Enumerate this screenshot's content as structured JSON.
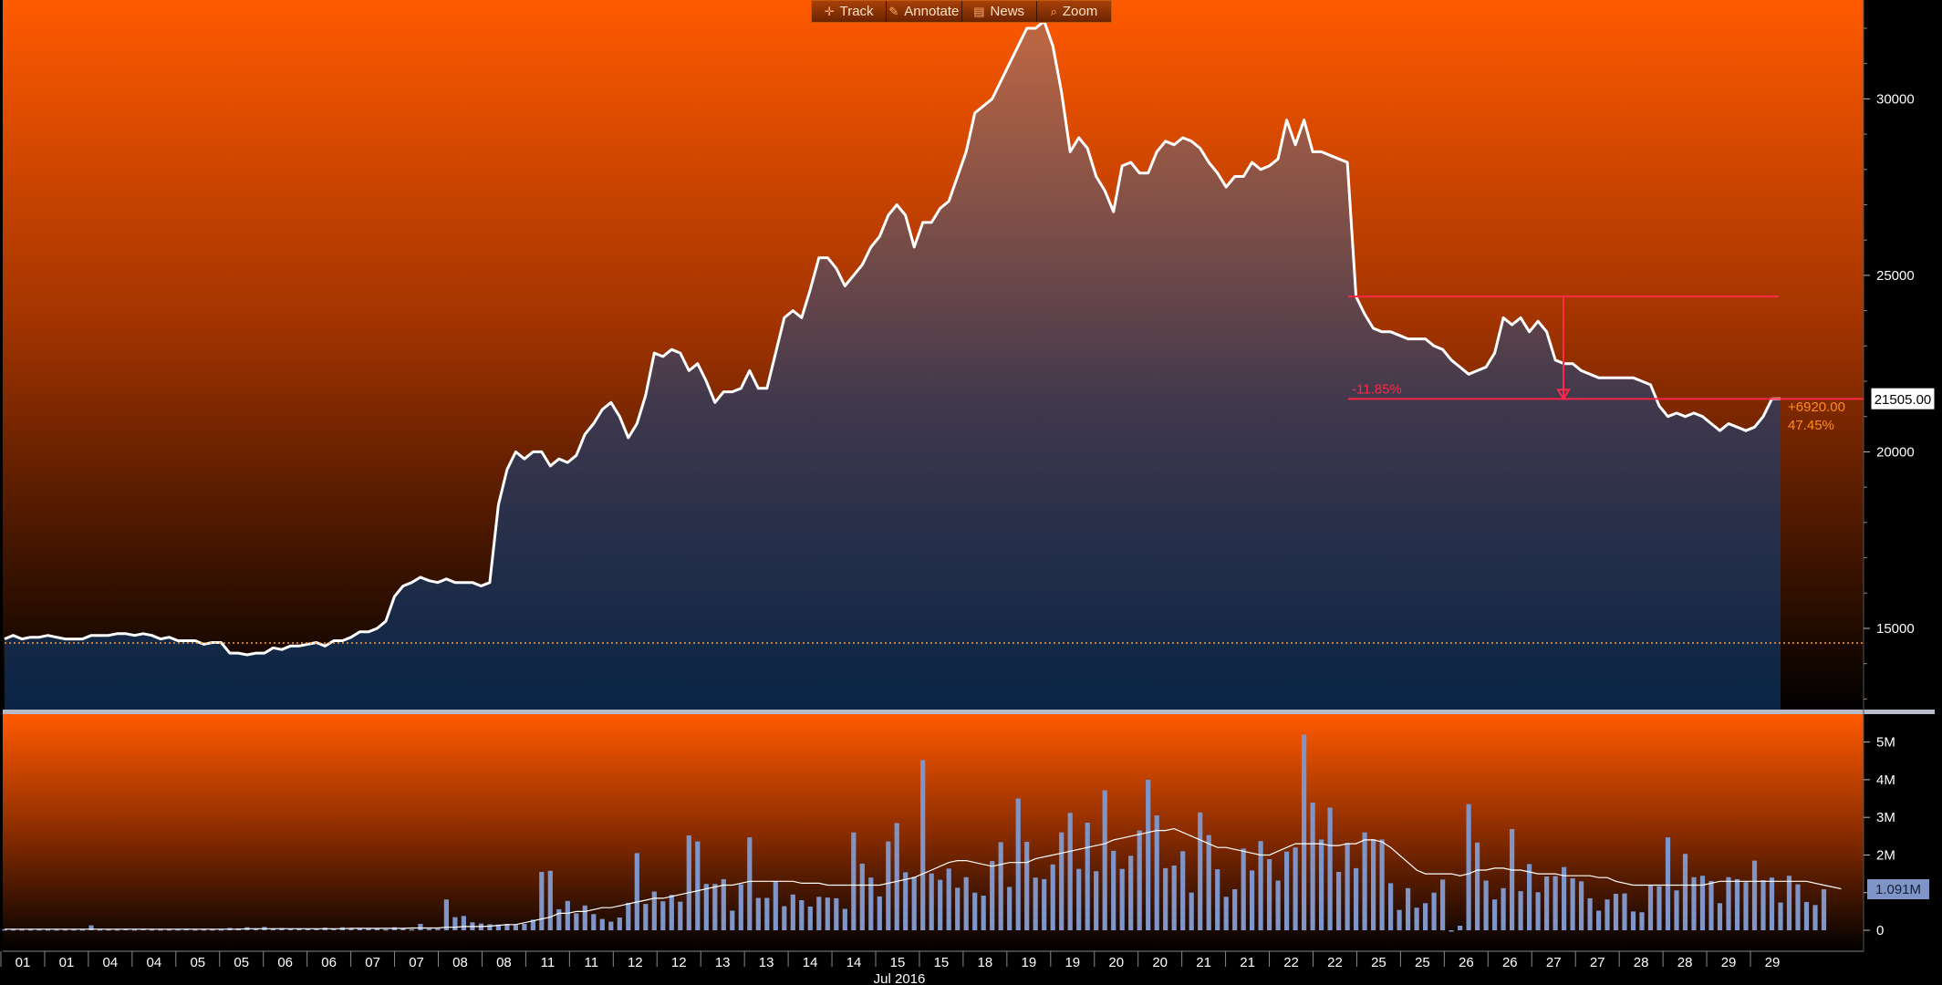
{
  "toolbar": {
    "buttons": [
      {
        "label": "Track",
        "icon": "crosshair-icon"
      },
      {
        "label": "Annotate",
        "icon": "pencil-icon"
      },
      {
        "label": "News",
        "icon": "news-icon"
      },
      {
        "label": "Zoom",
        "icon": "magnifier-icon"
      }
    ]
  },
  "colors": {
    "bg_top": "#ff5a00",
    "bg_bottom": "#000000",
    "price_line": "#ffffff",
    "volume_bar": "#7f95c8",
    "annotation": "#ff2848",
    "change_text": "#ff8c1a",
    "baseline": "#ff9a3c"
  },
  "chart_data": [
    {
      "type": "area",
      "title": "",
      "xlabel": "Jul 2016",
      "ylabel": "",
      "ylim": [
        12700,
        32800
      ],
      "yticks": [
        15000,
        20000,
        25000,
        30000
      ],
      "ytick_labels": [
        "15000",
        "20000",
        "25000",
        "30000"
      ],
      "x_tick_labels": [
        "01",
        "01",
        "04",
        "04",
        "05",
        "05",
        "06",
        "06",
        "07",
        "07",
        "08",
        "08",
        "11",
        "11",
        "12",
        "12",
        "13",
        "13",
        "14",
        "14",
        "15",
        "15",
        "18",
        "19",
        "19",
        "20",
        "20",
        "21",
        "21",
        "22",
        "22",
        "25",
        "25",
        "26",
        "26",
        "27",
        "27",
        "28",
        "28",
        "29",
        "29"
      ],
      "x_month_label": "Jul 2016",
      "grid": false,
      "values": [
        14700,
        14800,
        14700,
        14750,
        14750,
        14800,
        14750,
        14700,
        14700,
        14700,
        14800,
        14800,
        14800,
        14850,
        14850,
        14800,
        14850,
        14800,
        14700,
        14750,
        14650,
        14650,
        14650,
        14550,
        14600,
        14600,
        14300,
        14300,
        14250,
        14300,
        14300,
        14450,
        14400,
        14500,
        14500,
        14550,
        14600,
        14500,
        14650,
        14650,
        14750,
        14900,
        14900,
        15000,
        15200,
        15900,
        16200,
        16300,
        16450,
        16350,
        16300,
        16400,
        16300,
        16300,
        16300,
        16200,
        16300,
        18500,
        19500,
        20000,
        19800,
        20000,
        20000,
        19600,
        19800,
        19700,
        19900,
        20500,
        20800,
        21200,
        21400,
        21000,
        20400,
        20800,
        21600,
        22800,
        22700,
        22900,
        22800,
        22300,
        22500,
        22000,
        21400,
        21700,
        21700,
        21800,
        22300,
        21800,
        21800,
        22800,
        23800,
        24000,
        23800,
        24600,
        25500,
        25500,
        25200,
        24700,
        25000,
        25300,
        25800,
        26100,
        26700,
        27000,
        26700,
        25800,
        26500,
        26500,
        26900,
        27100,
        27800,
        28500,
        29600,
        29800,
        30000,
        30500,
        31000,
        31500,
        32000,
        32000,
        32200,
        31500,
        30200,
        28500,
        28900,
        28600,
        27800,
        27400,
        26800,
        28100,
        28200,
        27900,
        27900,
        28500,
        28800,
        28700,
        28900,
        28800,
        28600,
        28200,
        27900,
        27500,
        27800,
        27800,
        28200,
        28000,
        28100,
        28300,
        29400,
        28700,
        29400,
        28500,
        28500,
        28400,
        28300,
        28200,
        24400,
        23900,
        23500,
        23400,
        23400,
        23300,
        23200,
        23200,
        23200,
        23000,
        22900,
        22600,
        22400,
        22200,
        22300,
        22400,
        22800,
        23800,
        23600,
        23800,
        23400,
        23700,
        23400,
        22600,
        22500,
        22500,
        22300,
        22200,
        22100,
        22100,
        22100,
        22100,
        22100,
        22000,
        21900,
        21300,
        21000,
        21100,
        21000,
        21100,
        21000,
        20800,
        20600,
        20800,
        20700,
        20600,
        20700,
        21000,
        21500,
        21505
      ],
      "last_value": 21505,
      "last_value_label": "21505.00",
      "baseline_value": 14585,
      "change_label": "+6920.00",
      "change_pct_label": "47.45%",
      "annotation": {
        "type": "drawdown",
        "from_value": 24400,
        "to_value": 21500,
        "label": "-11.85%"
      }
    },
    {
      "type": "bar",
      "title": "",
      "ylabel": "",
      "ylim": [
        0,
        5500000
      ],
      "yticks": [
        0,
        1000000,
        2000000,
        3000000,
        4000000,
        5000000
      ],
      "ytick_labels": [
        "0",
        "1M",
        "2M",
        "3M",
        "4M",
        "5M"
      ],
      "last_value_label": "1.091M",
      "series": [
        {
          "values": [
            30000,
            30000,
            30000,
            30000,
            30000,
            30000,
            30000,
            30000,
            30000,
            30000,
            130000,
            30000,
            30000,
            30000,
            40000,
            30000,
            40000,
            30000,
            30000,
            30000,
            30000,
            40000,
            30000,
            30000,
            30000,
            30000,
            60000,
            50000,
            80000,
            40000,
            90000,
            50000,
            60000,
            40000,
            50000,
            40000,
            40000,
            70000,
            40000,
            80000,
            60000,
            40000,
            60000,
            40000,
            30000,
            80000,
            40000,
            30000,
            170000,
            40000,
            40000,
            820000,
            350000,
            380000,
            210000,
            180000,
            160000,
            150000,
            170000,
            140000,
            170000,
            280000,
            1550000,
            1580000,
            560000,
            780000,
            450000,
            660000,
            430000,
            300000,
            230000,
            340000,
            730000,
            2050000,
            700000,
            1030000,
            770000,
            940000,
            760000,
            2520000,
            2360000,
            1230000,
            1230000,
            1360000,
            520000,
            1220000,
            2470000,
            860000,
            860000,
            1290000,
            640000,
            950000,
            800000,
            630000,
            890000,
            870000,
            850000,
            570000,
            2600000,
            1770000,
            1400000,
            900000,
            2360000,
            2850000,
            1540000,
            1420000,
            4520000,
            1510000,
            1340000,
            1640000,
            1130000,
            1410000,
            1000000,
            920000,
            1840000,
            2340000,
            1150000,
            3500000,
            2350000,
            1400000,
            1360000,
            1750000,
            2600000,
            3120000,
            1630000,
            2860000,
            1570000,
            3720000,
            2110000,
            1630000,
            1980000,
            2650000,
            4000000,
            3050000,
            1650000,
            1720000,
            2100000,
            1000000,
            3130000,
            2530000,
            1620000,
            890000,
            1090000,
            2170000,
            1590000,
            2370000,
            1890000,
            1320000,
            2090000,
            2200000,
            5200000,
            3390000,
            2410000,
            3260000,
            1550000,
            2320000,
            1650000,
            2600000,
            2420000,
            2410000,
            1250000,
            540000,
            1120000,
            600000,
            720000,
            1000000,
            1350000,
            0,
            120000,
            3350000,
            2330000,
            1320000,
            820000,
            1120000,
            2690000,
            1040000,
            1760000,
            1010000,
            1430000,
            1440000,
            1680000,
            1380000,
            1300000,
            850000,
            520000,
            820000,
            970000,
            980000,
            500000,
            480000,
            1210000,
            1170000,
            2470000,
            1060000,
            2030000,
            1410000,
            1450000,
            1310000,
            720000,
            1410000,
            1360000,
            1280000,
            1850000,
            1330000,
            1400000,
            740000,
            1450000,
            1220000,
            750000,
            670000,
            1090000
          ]
        },
        {
          "values": [
            30000,
            30000,
            30000,
            30000,
            30000,
            30000,
            30000,
            30000,
            30000,
            30000,
            30000,
            30000,
            30000,
            30000,
            30000,
            30000,
            30000,
            30000,
            30000,
            30000,
            30000,
            30000,
            30000,
            30000,
            30000,
            30000,
            30000,
            30000,
            40000,
            40000,
            40000,
            40000,
            40000,
            40000,
            40000,
            40000,
            40000,
            40000,
            40000,
            40000,
            50000,
            50000,
            50000,
            50000,
            50000,
            50000,
            50000,
            60000,
            60000,
            60000,
            60000,
            80000,
            80000,
            100000,
            100000,
            100000,
            110000,
            130000,
            150000,
            150000,
            200000,
            250000,
            300000,
            350000,
            450000,
            450000,
            500000,
            500000,
            550000,
            600000,
            600000,
            650000,
            700000,
            750000,
            800000,
            850000,
            850000,
            900000,
            950000,
            1000000,
            1050000,
            1100000,
            1150000,
            1200000,
            1200000,
            1250000,
            1300000,
            1300000,
            1300000,
            1300000,
            1300000,
            1300000,
            1250000,
            1250000,
            1250000,
            1200000,
            1200000,
            1200000,
            1200000,
            1200000,
            1200000,
            1200000,
            1250000,
            1300000,
            1350000,
            1400000,
            1500000,
            1600000,
            1700000,
            1800000,
            1850000,
            1850000,
            1800000,
            1750000,
            1700000,
            1750000,
            1800000,
            1800000,
            1800000,
            1900000,
            1950000,
            2000000,
            2050000,
            2100000,
            2150000,
            2200000,
            2250000,
            2300000,
            2400000,
            2450000,
            2500000,
            2550000,
            2600000,
            2650000,
            2650000,
            2700000,
            2600000,
            2500000,
            2400000,
            2300000,
            2200000,
            2200000,
            2150000,
            2100000,
            2050000,
            2000000,
            2000000,
            2100000,
            2200000,
            2300000,
            2300000,
            2300000,
            2300000,
            2250000,
            2250000,
            2300000,
            2300000,
            2400000,
            2400000,
            2350000,
            2200000,
            2000000,
            1800000,
            1600000,
            1500000,
            1500000,
            1500000,
            1500000,
            1450000,
            1500000,
            1600000,
            1600000,
            1650000,
            1650000,
            1600000,
            1600000,
            1550000,
            1500000,
            1500000,
            1500000,
            1450000,
            1450000,
            1450000,
            1450000,
            1400000,
            1400000,
            1300000,
            1250000,
            1200000,
            1200000,
            1200000,
            1200000,
            1200000,
            1200000,
            1200000,
            1200000,
            1200000,
            1250000,
            1300000,
            1300000,
            1300000,
            1300000,
            1300000,
            1300000,
            1300000,
            1300000,
            1300000,
            1300000,
            1300000,
            1250000,
            1200000,
            1150000,
            1100000
          ]
        }
      ]
    }
  ]
}
